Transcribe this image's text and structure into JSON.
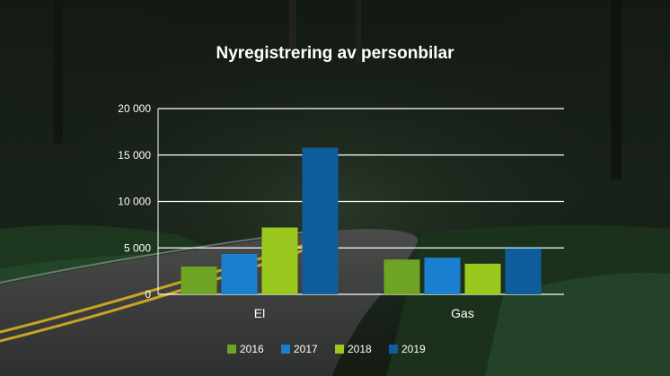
{
  "chart_data": {
    "type": "bar",
    "title": "Nyregistrering av personbilar",
    "xlabel": "",
    "ylabel": "",
    "categories": [
      "El",
      "Gas"
    ],
    "series": [
      {
        "name": "2016",
        "color": "#6fa324",
        "values": [
          3000,
          3750
        ]
      },
      {
        "name": "2017",
        "color": "#1b7fd0",
        "values": [
          4350,
          3950
        ]
      },
      {
        "name": "2018",
        "color": "#9bc81e",
        "values": [
          7200,
          3300
        ]
      },
      {
        "name": "2019",
        "color": "#0e5e9e",
        "values": [
          15800,
          4950
        ]
      }
    ],
    "ylim": [
      0,
      20000
    ],
    "yticks": [
      0,
      5000,
      10000,
      15000,
      20000
    ],
    "ytick_labels": [
      "0",
      "5 000",
      "10 000",
      "15 000",
      "20 000"
    ],
    "grid": true,
    "legend_position": "bottom"
  }
}
